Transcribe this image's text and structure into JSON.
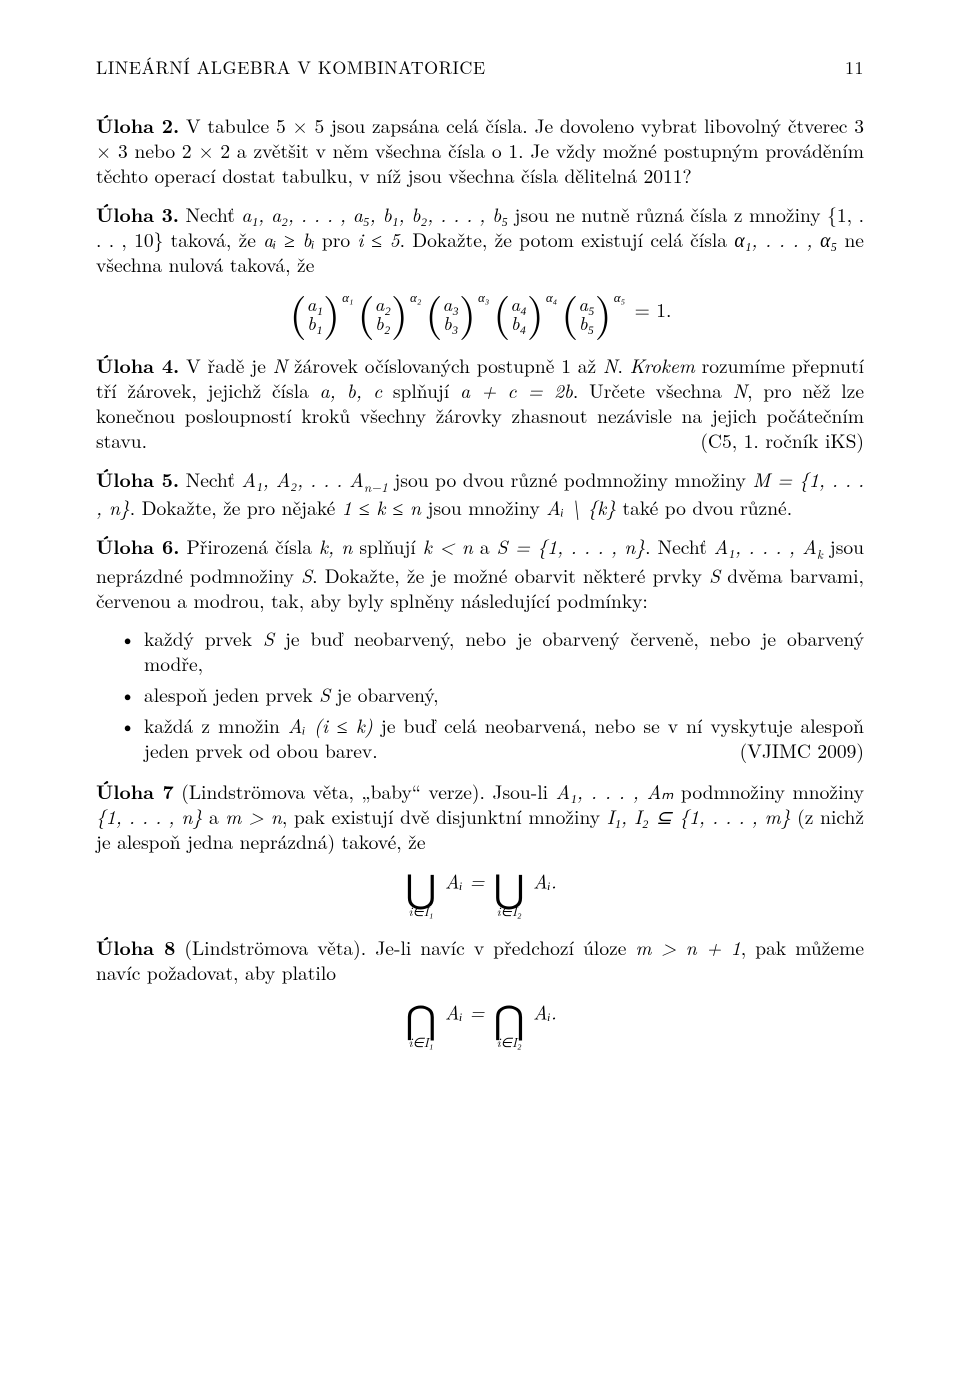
{
  "header": {
    "title": "LINEÁRNÍ ALGEBRA V KOMBINATORICE",
    "page_number": "11"
  },
  "uloha2": {
    "label": "Úloha 2.",
    "text": "V tabulce 5 × 5 jsou zapsána celá čísla. Je dovoleno vybrat libovolný čtverec 3 × 3 nebo 2 × 2 a zvětšit v něm všechna čísla o 1. Je vždy možné postupným prováděním těchto operací dostat tabulku, v níž jsou všechna čísla dělitelná 2011?"
  },
  "uloha3": {
    "label": "Úloha 3.",
    "text_a": "Nechť ",
    "seq1": "a₁, a₂, . . . , a₅, b₁, b₂, . . . , b₅",
    "text_b": " jsou ne nutně různá čísla z množiny {1, . . . , 10} taková, že ",
    "cond1": "aᵢ ≥ bᵢ",
    "text_c": " pro ",
    "cond2": "i ≤ 5",
    "text_d": ". Dokažte, že potom existují celá čísla ",
    "seq2": "α₁, . . . , α₅",
    "text_e": " ne všechna nulová taková, že",
    "eq_tail": " = 1.",
    "pairs": [
      {
        "top": "a₁",
        "bot": "b₁",
        "exp": "α₁"
      },
      {
        "top": "a₂",
        "bot": "b₂",
        "exp": "α₂"
      },
      {
        "top": "a₃",
        "bot": "b₃",
        "exp": "α₃"
      },
      {
        "top": "a₄",
        "bot": "b₄",
        "exp": "α₄"
      },
      {
        "top": "a₅",
        "bot": "b₅",
        "exp": "α₅"
      }
    ]
  },
  "uloha4": {
    "label": "Úloha 4.",
    "text_a": "V řadě je ",
    "N": "N",
    "text_b": " žárovek očíslovaných postupně 1 až ",
    "text_c": ". ",
    "emph": "Krokem",
    "text_d": " rozumíme přepnutí tří žárovek, jejichž čísla ",
    "abc": "a, b, c",
    "text_e": " splňují ",
    "rel": "a + c = 2b",
    "text_f": ". Určete všechna ",
    "text_g": ", pro něž lze konečnou posloupností kroků všechny žárovky zhasnout nezávisle na jejich počátečním stavu.",
    "attrib": "(C5, 1. ročník iKS)"
  },
  "uloha5": {
    "label": "Úloha 5.",
    "text_a": "Nechť ",
    "seq": "A₁, A₂, . . . A",
    "nminus1": "n−1",
    "text_b": " jsou po dvou různé podmnožiny množiny ",
    "M": "M = {1, . . . , n}",
    "text_c": ". Dokažte, že pro nějaké ",
    "cond": "1 ≤ k ≤ n",
    "text_d": " jsou množiny ",
    "Ai": "Aᵢ \\ {k}",
    "text_e": " také po dvou různé."
  },
  "uloha6": {
    "label": "Úloha 6.",
    "text_a": "Přirozená čísla ",
    "kn": "k, n",
    "text_b": " splňují ",
    "cond1": "k < n",
    "text_c": " a ",
    "S": "S = {1, . . . , n}",
    "text_d": ". Nechť ",
    "seq": "A₁, . . . , A",
    "k": "k",
    "text_e": " jsou neprázdné podmnožiny ",
    "Svar": "S",
    "text_f": ". Dokažte, že je možné obarvit některé prvky ",
    "text_g": " dvěma barvami, červenou a modrou, tak, aby byly splněny následující podmínky:",
    "bullets": [
      {
        "text_a": "každý prvek ",
        "S": "S",
        "text_b": " je buď neobarvený, nebo je obarvený červeně, nebo je obarvený modře,"
      },
      {
        "text_a": "alespoň jeden prvek ",
        "S": "S",
        "text_b": " je obarvený,"
      },
      {
        "text_a": "každá z množin ",
        "Ai": "Aᵢ (i ≤ k)",
        "text_b": " je buď celá neobarvená, nebo se v ní vyskytuje alespoň jeden prvek od obou barev.",
        "attrib": "(VJIMC 2009)"
      }
    ]
  },
  "uloha7": {
    "label": "Úloha 7",
    "paren": " (Lindströmova věta, „baby“ verze).",
    "text_a": " Jsou-li ",
    "seq": "A₁, . . . , Aₘ",
    "text_b": " podmnožiny množiny ",
    "set": "{1, . . . , n}",
    "text_c": " a ",
    "cond": "m > n",
    "text_d": ", pak existují dvě disjunktní množiny ",
    "I12": "I₁, I₂ ⊆ {1, . . . , m}",
    "text_e": " (z nichž je alespoň jedna neprázdná) takové, že",
    "eq": {
      "op": "⋃",
      "lim1": "i∈I₁",
      "mid": "Aᵢ = ",
      "lim2": "i∈I₂",
      "tail": "Aᵢ."
    }
  },
  "uloha8": {
    "label": "Úloha 8",
    "paren": " (Lindströmova věta).",
    "text_a": " Je-li navíc v předchozí úloze ",
    "cond": "m > n + 1",
    "text_b": ", pak můžeme navíc požadovat, aby platilo",
    "eq": {
      "op": "⋂",
      "lim1": "i∈I₁",
      "mid": "Aᵢ = ",
      "lim2": "i∈I₂",
      "tail": "Aᵢ."
    }
  }
}
